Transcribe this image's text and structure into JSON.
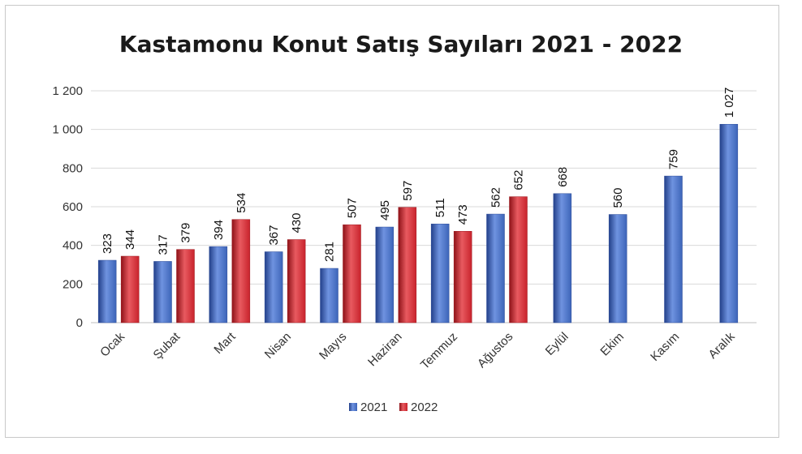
{
  "chart_data": {
    "type": "bar",
    "title": "Kastamonu Konut Satış Sayıları 2021 - 2022",
    "categories": [
      "Ocak",
      "Şubat",
      "Mart",
      "Nisan",
      "Mayıs",
      "Haziran",
      "Temmuz",
      "Ağustos",
      "Eylül",
      "Ekim",
      "Kasım",
      "Aralık"
    ],
    "series": [
      {
        "name": "2021",
        "color": "#3c64b8",
        "values": [
          323,
          317,
          394,
          367,
          281,
          495,
          511,
          562,
          668,
          560,
          759,
          1027
        ],
        "labels": [
          "323",
          "317",
          "394",
          "367",
          "281",
          "495",
          "511",
          "562",
          "668",
          "560",
          "759",
          "1 027"
        ]
      },
      {
        "name": "2022",
        "color": "#c8232c",
        "values": [
          344,
          379,
          534,
          430,
          507,
          597,
          473,
          652,
          null,
          null,
          null,
          null
        ],
        "labels": [
          "344",
          "379",
          "534",
          "430",
          "507",
          "597",
          "473",
          "652",
          "",
          "",
          "",
          ""
        ]
      }
    ],
    "ylim": [
      0,
      1200
    ],
    "yticks": [
      0,
      200,
      400,
      600,
      800,
      1000,
      1200
    ],
    "ytick_labels": [
      "0",
      "200",
      "400",
      "600",
      "800",
      "1 000",
      "1 200"
    ],
    "grid": true,
    "legend": "bottom"
  }
}
